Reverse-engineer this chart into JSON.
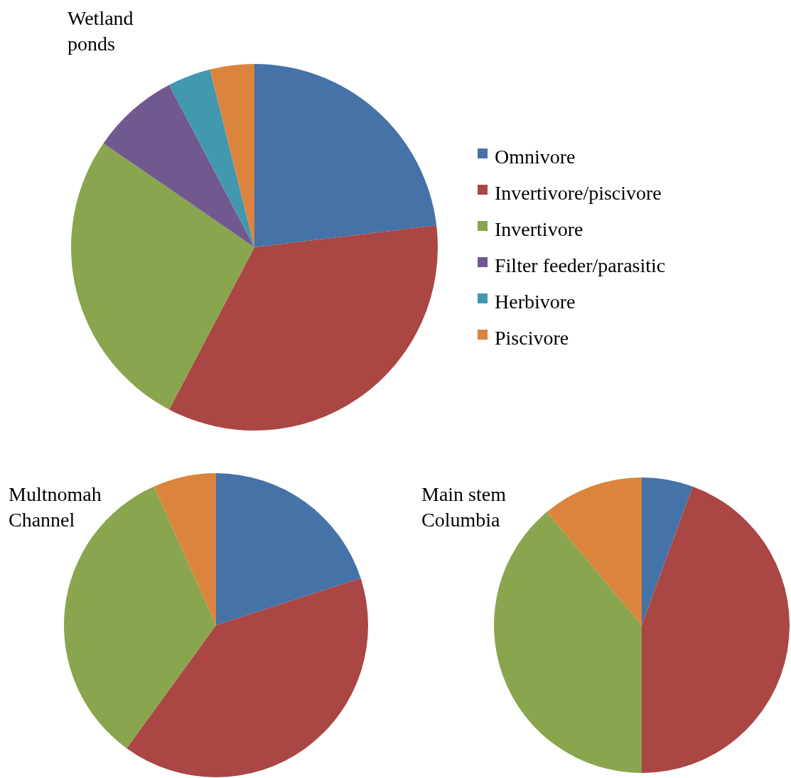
{
  "chart_data": [
    {
      "type": "pie",
      "title": "Wetland ponds",
      "categories": [
        "Omnivore",
        "Invertivore/piscivore",
        "Invertivore",
        "Filter feeder/parasitic",
        "Herbivore",
        "Piscivore"
      ],
      "values": [
        23.1,
        34.6,
        26.9,
        7.7,
        3.8,
        3.9
      ],
      "colors": [
        "#4572a7",
        "#aa4643",
        "#89a54e",
        "#71588f",
        "#4198af",
        "#db843d"
      ],
      "legend": "right"
    },
    {
      "type": "pie",
      "title": "Multnomah Channel",
      "categories": [
        null,
        null,
        null,
        null
      ],
      "values": [
        20,
        40,
        33.3,
        6.7
      ],
      "colors": [
        "#4572a7",
        "#aa4643",
        "#89a54e",
        "#db843d"
      ]
    },
    {
      "type": "pie",
      "title": "Main stem Columbia",
      "categories": [
        null,
        null,
        null,
        null
      ],
      "values": [
        5.6,
        44.4,
        38.9,
        11.1
      ],
      "colors": [
        "#4572a7",
        "#aa4643",
        "#89a54e",
        "#db843d"
      ]
    }
  ]
}
